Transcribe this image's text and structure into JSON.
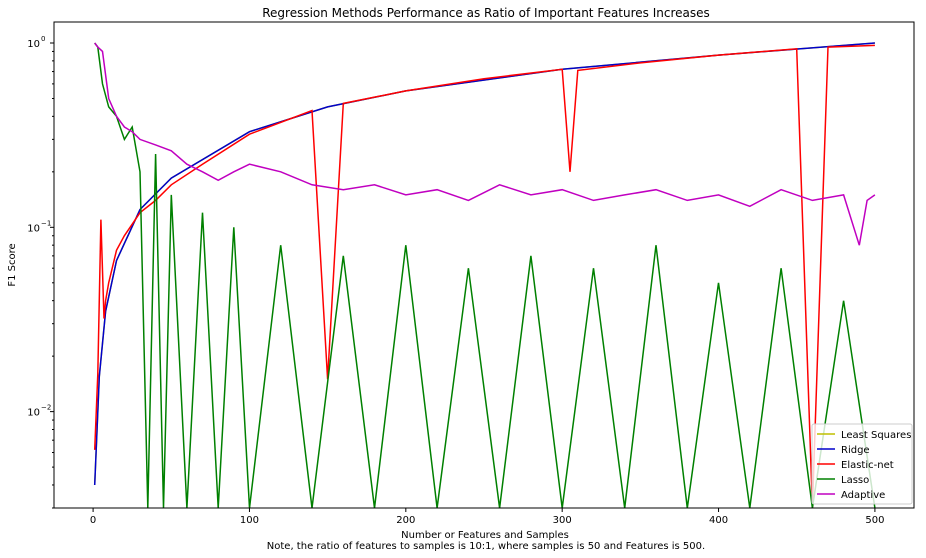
{
  "chart_data": {
    "type": "line",
    "title": "Regression Methods Performance as Ratio of Important Features Increases",
    "xlabel": "Number or Features and Samples",
    "ylabel": "F1 Score",
    "note": "Note, the ratio of features to samples is 10:1, where samples is 50 and Features is 500.",
    "xlim": [
      -25,
      525
    ],
    "ylim": [
      0.003,
      1.3
    ],
    "yscale": "log",
    "grid": false,
    "legend_position": "lower-right",
    "x_ticks": [
      {
        "value": 0,
        "label": "0"
      },
      {
        "value": 100,
        "label": "100"
      },
      {
        "value": 200,
        "label": "200"
      },
      {
        "value": 300,
        "label": "300"
      },
      {
        "value": 400,
        "label": "400"
      },
      {
        "value": 500,
        "label": "500"
      }
    ],
    "y_ticks": [
      {
        "value": 0.01,
        "base": "10",
        "exp": "−2"
      },
      {
        "value": 0.1,
        "base": "10",
        "exp": "−1"
      },
      {
        "value": 1,
        "base": "10",
        "exp": "0"
      }
    ],
    "series": [
      {
        "name": "Least Squares",
        "color": "#bfbf00",
        "x": [
          1,
          4,
          8,
          15,
          30,
          50,
          100,
          150,
          200,
          300,
          400,
          500
        ],
        "y": [
          0.004,
          0.0155,
          0.035,
          0.066,
          0.125,
          0.185,
          0.33,
          0.45,
          0.55,
          0.72,
          0.86,
          1.0
        ]
      },
      {
        "name": "Ridge",
        "color": "#0000cc",
        "x": [
          1,
          4,
          8,
          15,
          30,
          50,
          100,
          150,
          200,
          300,
          400,
          500
        ],
        "y": [
          0.004,
          0.0155,
          0.035,
          0.066,
          0.125,
          0.185,
          0.33,
          0.45,
          0.55,
          0.72,
          0.86,
          1.0
        ]
      },
      {
        "name": "Elastic-net",
        "color": "#ff0000",
        "x": [
          1,
          3,
          5,
          7,
          8,
          10,
          15,
          20,
          30,
          40,
          50,
          70,
          100,
          140,
          150,
          160,
          200,
          250,
          300,
          305,
          310,
          350,
          400,
          450,
          460,
          470,
          500
        ],
        "y": [
          0.0062,
          0.016,
          0.11,
          0.032,
          0.04,
          0.05,
          0.075,
          0.09,
          0.12,
          0.14,
          0.17,
          0.22,
          0.32,
          0.43,
          0.015,
          0.47,
          0.55,
          0.64,
          0.72,
          0.2,
          0.71,
          0.78,
          0.86,
          0.93,
          0.003,
          0.95,
          0.97
        ]
      },
      {
        "name": "Lasso",
        "color": "#008000",
        "x": [
          1,
          3,
          6,
          10,
          15,
          20,
          25,
          30,
          35,
          40,
          45,
          50,
          60,
          70,
          80,
          90,
          100,
          120,
          140,
          160,
          180,
          200,
          220,
          240,
          260,
          280,
          300,
          320,
          340,
          360,
          380,
          400,
          420,
          440,
          460,
          480,
          500
        ],
        "y": [
          1.0,
          0.95,
          0.6,
          0.45,
          0.4,
          0.3,
          0.35,
          0.2,
          0.003,
          0.25,
          0.003,
          0.15,
          0.003,
          0.12,
          0.003,
          0.1,
          0.003,
          0.08,
          0.003,
          0.07,
          0.003,
          0.08,
          0.003,
          0.06,
          0.003,
          0.07,
          0.003,
          0.06,
          0.003,
          0.08,
          0.003,
          0.05,
          0.003,
          0.06,
          0.003,
          0.04,
          0.003
        ]
      },
      {
        "name": "Adaptive",
        "color": "#c000c0",
        "x": [
          1,
          3,
          6,
          10,
          15,
          20,
          25,
          30,
          40,
          50,
          60,
          70,
          80,
          90,
          100,
          120,
          140,
          160,
          180,
          200,
          220,
          240,
          260,
          280,
          300,
          320,
          340,
          360,
          380,
          400,
          420,
          440,
          460,
          480,
          490,
          495,
          500
        ],
        "y": [
          1.0,
          0.95,
          0.9,
          0.5,
          0.4,
          0.35,
          0.33,
          0.3,
          0.28,
          0.26,
          0.22,
          0.2,
          0.18,
          0.2,
          0.22,
          0.2,
          0.17,
          0.16,
          0.17,
          0.15,
          0.16,
          0.14,
          0.17,
          0.15,
          0.16,
          0.14,
          0.15,
          0.16,
          0.14,
          0.15,
          0.13,
          0.16,
          0.14,
          0.15,
          0.08,
          0.14,
          0.15
        ]
      }
    ]
  }
}
